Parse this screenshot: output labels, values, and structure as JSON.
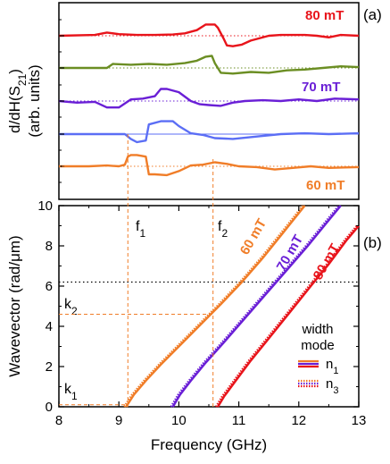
{
  "chart_data": [
    {
      "panel": "(a)",
      "type": "line",
      "ylabel_parts": [
        "d/dH(S",
        "21",
        ")"
      ],
      "ylabel2": "(arb. units)",
      "xlim": [
        8,
        13
      ],
      "series": [
        {
          "name": "80 mT",
          "color": "#e8141b",
          "x": [
            8,
            8.6,
            8.8,
            9.0,
            9.3,
            9.6,
            9.9,
            10.1,
            10.3,
            10.45,
            10.5,
            10.6,
            10.65,
            10.75,
            10.8,
            10.9,
            11.05,
            11.2,
            11.5,
            11.7,
            11.9,
            12.1,
            12.3,
            12.5,
            12.7,
            13
          ],
          "y": [
            0.0,
            0.05,
            0.2,
            0.1,
            0.05,
            0.05,
            0.08,
            0.15,
            0.35,
            0.7,
            0.7,
            0.7,
            0.5,
            -0.2,
            -0.6,
            -0.65,
            -0.55,
            -0.3,
            0.0,
            0.05,
            0.05,
            0.05,
            0.0,
            -0.1,
            0.05,
            0.0
          ]
        },
        {
          "name": "70 mT",
          "color": "#6a1fd6",
          "x": [
            8,
            8.3,
            8.6,
            8.8,
            9.0,
            9.2,
            9.4,
            9.6,
            9.7,
            9.8,
            10.0,
            10.2,
            10.35,
            10.5,
            10.7,
            10.9,
            11.1,
            11.4,
            11.7,
            12.0,
            12.3,
            12.6,
            13
          ],
          "y": [
            0.0,
            -0.1,
            -0.05,
            -0.4,
            -0.4,
            0.1,
            0.15,
            0.3,
            0.75,
            0.75,
            0.55,
            0.0,
            -0.2,
            -0.25,
            -0.3,
            -0.1,
            0.0,
            0.05,
            0.0,
            0.1,
            0.0,
            0.15,
            0.1
          ]
        },
        {
          "name": "60 mT",
          "color": "#f07d28",
          "x": [
            8,
            8.5,
            8.8,
            9.0,
            9.1,
            9.15,
            9.2,
            9.3,
            9.45,
            9.5,
            9.6,
            9.8,
            10.0,
            10.2,
            10.4,
            10.6,
            10.8,
            11.0,
            11.3,
            11.6,
            11.9,
            12.2,
            12.5,
            13
          ],
          "y": [
            0.0,
            0.0,
            0.05,
            0.0,
            0.1,
            0.6,
            0.7,
            0.7,
            0.6,
            -0.5,
            -0.5,
            -0.55,
            -0.3,
            0.05,
            0.1,
            0.25,
            0.15,
            0.0,
            -0.05,
            -0.2,
            -0.1,
            0.0,
            -0.1,
            -0.05
          ]
        }
      ],
      "extra_series": [
        {
          "color": "#6b8e23",
          "x": [
            8,
            8.4,
            8.8,
            8.9,
            9.2,
            9.5,
            9.8,
            10.1,
            10.3,
            10.45,
            10.55,
            10.6,
            10.7,
            10.9,
            11.2,
            11.5,
            11.8,
            12.1,
            12.4,
            12.7,
            13
          ],
          "y": [
            0.0,
            0.0,
            0.0,
            0.25,
            0.2,
            0.25,
            0.2,
            0.3,
            0.45,
            0.7,
            0.75,
            0.3,
            -0.3,
            -0.35,
            -0.25,
            -0.3,
            -0.15,
            -0.1,
            0.0,
            0.1,
            0.05
          ]
        },
        {
          "color": "#5b6ef5",
          "x": [
            8,
            8.6,
            9.0,
            9.1,
            9.2,
            9.3,
            9.45,
            9.5,
            9.7,
            9.9,
            10.0,
            10.2,
            10.4,
            10.6,
            10.9,
            11.3,
            11.7,
            12.1,
            12.5,
            13
          ],
          "y": [
            0.0,
            0.0,
            0.0,
            0.0,
            -0.3,
            -0.5,
            -0.4,
            0.6,
            0.8,
            0.8,
            0.5,
            0.05,
            -0.05,
            -0.25,
            -0.3,
            -0.15,
            0.0,
            0.05,
            0.0,
            0.05
          ]
        }
      ],
      "annotations": [
        "80 mT",
        "70 mT",
        "60 mT"
      ],
      "markers": {
        "f1": 9.15,
        "f2": 10.57,
        "f1_label": "f",
        "f1_sub": "1",
        "f2_label": "f",
        "f2_sub": "2"
      }
    },
    {
      "panel": "(b)",
      "type": "line",
      "xlabel": "Frequency (GHz)",
      "ylabel": "Wavevector (rad/μm)",
      "xlim": [
        8,
        13
      ],
      "ylim": [
        0,
        10
      ],
      "xticks": [
        "8",
        "9",
        "10",
        "11",
        "12",
        "13"
      ],
      "yticks": [
        "0",
        "2",
        "4",
        "6",
        "8",
        "10"
      ],
      "series": [
        {
          "name": "60 mT",
          "color": "#f07d28",
          "x": [
            9.12,
            9.25,
            9.45,
            9.7,
            10.0,
            10.35,
            10.7,
            11.05,
            11.4,
            11.75,
            12.1
          ],
          "y": [
            0,
            0.6,
            1.3,
            2.1,
            3.0,
            4.05,
            5.1,
            6.2,
            7.4,
            8.7,
            10.0
          ]
        },
        {
          "name": "70 mT",
          "color": "#6a1fd6",
          "x": [
            9.9,
            10.02,
            10.2,
            10.45,
            10.75,
            11.1,
            11.45,
            11.8,
            12.15,
            12.45,
            12.7
          ],
          "y": [
            0,
            0.6,
            1.3,
            2.2,
            3.2,
            4.4,
            5.6,
            6.8,
            8.0,
            9.1,
            10.0
          ]
        },
        {
          "name": "80 mT",
          "color": "#e8141b",
          "x": [
            10.65,
            10.75,
            10.95,
            11.2,
            11.5,
            11.85,
            12.2,
            12.5,
            12.8,
            13.0
          ],
          "y": [
            0,
            0.5,
            1.3,
            2.3,
            3.4,
            4.7,
            6.0,
            7.1,
            8.3,
            9.0
          ]
        }
      ],
      "series_labels": [
        "60 mT",
        "70 mT",
        "80 mT"
      ],
      "hlines": [
        6.2
      ],
      "markers": {
        "k1": 0.1,
        "k2": 4.6,
        "k1_label": "k",
        "k1_sub": "1",
        "k2_label": "k",
        "k2_sub": "2"
      },
      "legend": {
        "title1": "width",
        "title2": "mode",
        "entries": [
          {
            "label": "n",
            "sub": "1",
            "style": "solid"
          },
          {
            "label": "n",
            "sub": "3",
            "style": "dotted"
          }
        ]
      }
    }
  ]
}
